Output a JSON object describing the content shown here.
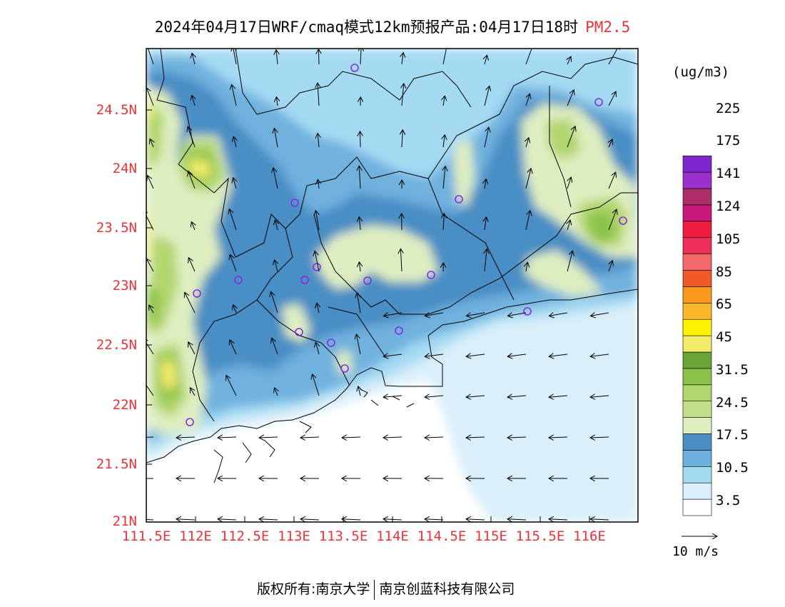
{
  "title": {
    "main": "2024年04月17日WRF/cmaq模式12km预报产品:04月17日18时",
    "pollutant": "PM2.5"
  },
  "axes": {
    "lat_ticks": [
      "21N",
      "21.5N",
      "22N",
      "22.5N",
      "23N",
      "23.5N",
      "24N",
      "24.5N"
    ],
    "lon_ticks": [
      "111.5E",
      "112E",
      "112.5E",
      "113E",
      "113.5E",
      "114E",
      "114.5E",
      "115E",
      "115.5E",
      "116E"
    ],
    "lat_range": [
      21.0,
      25.0
    ],
    "lon_range": [
      111.5,
      116.5
    ],
    "tick_color": "#e8333a"
  },
  "colorbar": {
    "unit": "(ug/m3)",
    "colors": [
      "#ffffff",
      "#d9eff9",
      "#a5daf3",
      "#6fb1de",
      "#4a8ec4",
      "#dfeec1",
      "#c4df8b",
      "#b2d66d",
      "#8bc34a",
      "#6aa637",
      "#f3eb6c",
      "#fff200",
      "#fbb829",
      "#f89a1b",
      "#f1592a",
      "#f36a6a",
      "#ee2e5b",
      "#ee1d3f",
      "#c9187a",
      "#ab2f66",
      "#9b30cc",
      "#7d26cd"
    ],
    "labels": [
      "3.5",
      "10.5",
      "17.5",
      "24.5",
      "31.5",
      "45",
      "65",
      "85",
      "105",
      "124",
      "141",
      "175",
      "225"
    ]
  },
  "wind": {
    "reference_label": "10 m/s"
  },
  "footer": {
    "left": "版权所有:南京大学",
    "right": "南京创蓝科技有限公司"
  }
}
